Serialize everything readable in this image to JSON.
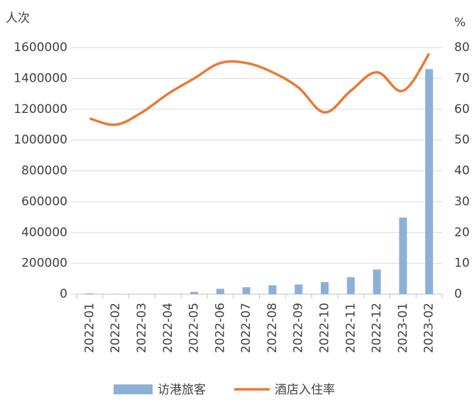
{
  "chart_data": {
    "type": "bar-line",
    "y_label": "人次",
    "y2_label": "%",
    "categories": [
      "2022-01",
      "2022-02",
      "2022-03",
      "2022-04",
      "2022-05",
      "2022-06",
      "2022-07",
      "2022-08",
      "2022-09",
      "2022-10",
      "2022-11",
      "2022-12",
      "2023-01",
      "2023-02"
    ],
    "series": [
      {
        "name": "访港旅客",
        "type": "bar",
        "color": "#8db1d6",
        "values": [
          5000,
          1000,
          1000,
          1000,
          15000,
          35000,
          45000,
          58000,
          63000,
          78000,
          110000,
          160000,
          497000,
          1460000
        ]
      },
      {
        "name": "酒店入住率",
        "type": "line",
        "axis": "y2",
        "color": "#e87a35",
        "values": [
          57,
          55,
          59,
          65,
          70,
          75,
          75,
          72,
          67,
          59,
          66,
          72,
          66,
          78
        ]
      }
    ],
    "ylim": [
      0,
      1600000
    ],
    "yticks": [
      0,
      200000,
      400000,
      600000,
      800000,
      1000000,
      1200000,
      1400000,
      1600000
    ],
    "y2lim": [
      0,
      80
    ],
    "y2ticks": [
      0,
      10,
      20,
      30,
      40,
      50,
      60,
      70,
      80
    ],
    "grid": true
  }
}
